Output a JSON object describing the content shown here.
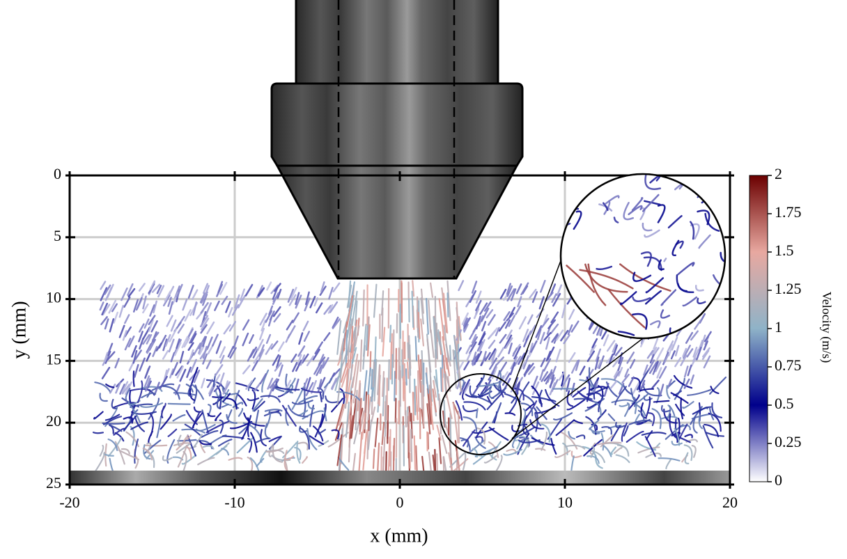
{
  "chart_data": {
    "type": "streak",
    "xlabel": "x (mm)",
    "ylabel": "y (mm)",
    "xlim": [
      -20,
      20
    ],
    "xticks": [
      -20,
      -10,
      0,
      10,
      20
    ],
    "ylim": [
      0,
      25
    ],
    "yticks": [
      0,
      5,
      10,
      15,
      20,
      25
    ],
    "y_inverted": true,
    "grid": true,
    "colorbar": {
      "label": "Velocity (m/s)",
      "lim": [
        0,
        2
      ],
      "ticks": [
        0,
        0.25,
        0.5,
        0.75,
        1,
        1.25,
        1.5,
        1.75,
        2
      ],
      "colors": [
        "#ffffff",
        "#00008b",
        "#8fb3c8",
        "#e8a8a0",
        "#6b0000"
      ]
    }
  }
}
